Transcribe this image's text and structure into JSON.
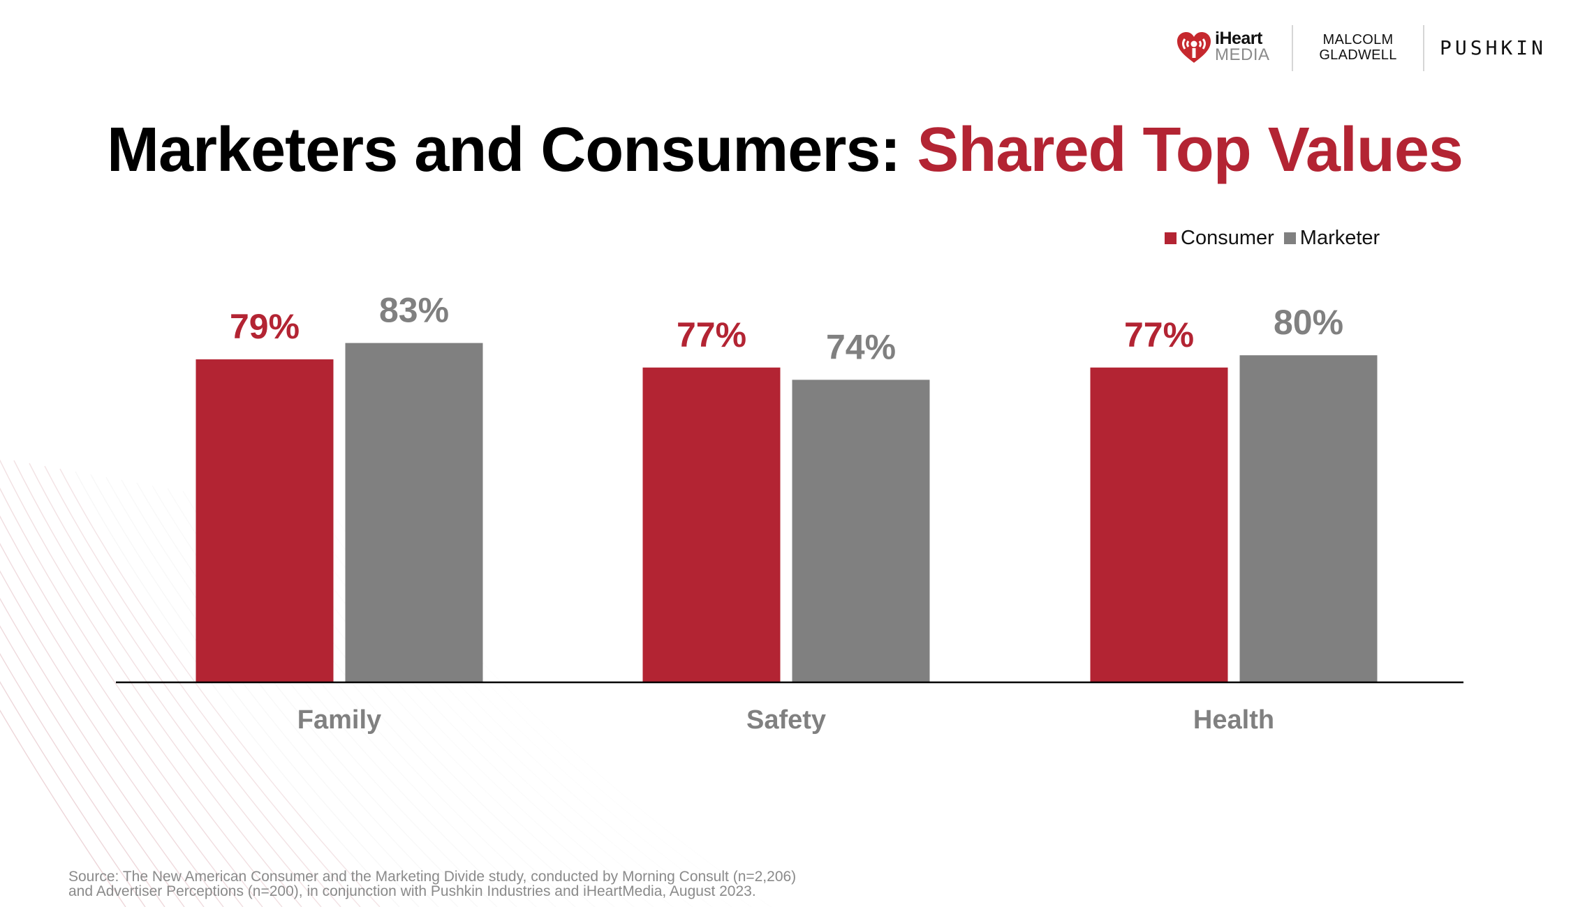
{
  "header": {
    "logos": {
      "iheart_word": "iHeart",
      "iheart_media": "MEDIA",
      "gladwell_line1": "MALCOLM",
      "gladwell_line2": "GLADWELL",
      "pushkin": "PUSHKIN"
    }
  },
  "title": {
    "main": "Marketers and Consumers: ",
    "accent": "Shared Top Values"
  },
  "colors": {
    "accent": "#B32433",
    "gray": "#808080",
    "axis": "#000000",
    "text_gray": "#808080"
  },
  "chart_data": {
    "type": "bar",
    "title": "Marketers and Consumers: Shared Top Values",
    "xlabel": "",
    "ylabel": "",
    "categories": [
      "Family",
      "Safety",
      "Health"
    ],
    "series": [
      {
        "name": "Consumer",
        "color": "#B32433",
        "values": [
          79,
          77,
          77
        ],
        "labels": [
          "79%",
          "77%",
          "77%"
        ]
      },
      {
        "name": "Marketer",
        "color": "#808080",
        "values": [
          83,
          74,
          80
        ],
        "labels": [
          "83%",
          "74%",
          "80%"
        ]
      }
    ],
    "ylim": [
      0,
      100
    ],
    "grid": false,
    "legend": "top-right",
    "value_format": "percent"
  },
  "legend": {
    "items": [
      {
        "label": "Consumer",
        "color": "#B32433"
      },
      {
        "label": "Marketer",
        "color": "#808080"
      }
    ]
  },
  "source": {
    "line1": "Source: The New American Consumer and the Marketing Divide study, conducted by Morning Consult (n=2,206)",
    "line2": "and Advertiser Perceptions (n=200), in conjunction with Pushkin Industries and iHeartMedia, August 2023."
  }
}
